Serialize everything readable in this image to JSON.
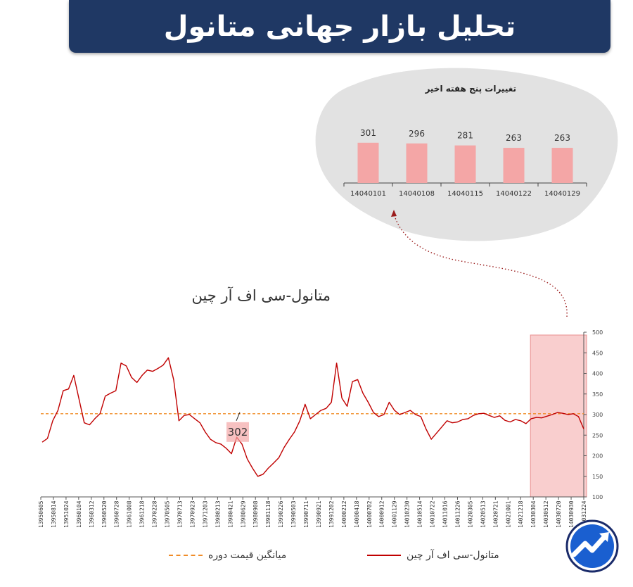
{
  "header": {
    "title": "تحلیل بازار جهانی متانول"
  },
  "inset": {
    "title": "تغییرات پنج هفته اخیر",
    "bar_color": "#f4a6a6"
  },
  "main": {
    "title": "متانول-سی اف آر  چین",
    "callout_value": "302",
    "highlight_color": "#f4a6a6",
    "line_color": "#c00000",
    "avg_color": "#f08c28"
  },
  "legend": {
    "series_label": "متانول-سی اف آر  چین",
    "avg_label": "میانگین قیمت دوره"
  },
  "chart_data": [
    {
      "type": "bar",
      "title": "تغییرات پنج هفته اخیر",
      "categories": [
        "14040101",
        "14040108",
        "14040115",
        "14040122",
        "14040129"
      ],
      "values": [
        301,
        296,
        281,
        263,
        263
      ],
      "value_labels": [
        "301",
        "296",
        "281",
        "263",
        "263"
      ]
    },
    {
      "type": "line",
      "title": "متانول-سی اف آر  چین",
      "ylim": [
        100,
        500
      ],
      "yticks": [
        100,
        150,
        200,
        250,
        300,
        350,
        400,
        450,
        500
      ],
      "ytick_labels": [
        "100",
        "150",
        "200",
        "250",
        "300",
        "350",
        "400",
        "450",
        "500"
      ],
      "xtick_labels": [
        "13950605",
        "13950814",
        "13951024",
        "13960104",
        "13960312",
        "13960520",
        "13960728",
        "13961008",
        "13961218",
        "13970228",
        "13970505",
        "13970713",
        "13970923",
        "13971203",
        "13980213",
        "13980421",
        "13980629",
        "13980908",
        "13981118",
        "13990226",
        "13990503",
        "13990711",
        "13990921",
        "13991202",
        "14000212",
        "14000418",
        "14000702",
        "14000912",
        "14001129",
        "14010230",
        "14010514",
        "14010722",
        "14011016",
        "14011226",
        "14020305",
        "14020513",
        "14020721",
        "14021001",
        "14021218",
        "14030304",
        "14030512",
        "14030720",
        "14030930",
        "14031224"
      ],
      "series": [
        {
          "name": "متانول-سی اف آر  چین",
          "values": [
            233,
            242,
            285,
            310,
            358,
            362,
            395,
            338,
            280,
            275,
            290,
            302,
            345,
            352,
            358,
            425,
            418,
            390,
            378,
            395,
            408,
            405,
            412,
            420,
            438,
            385,
            285,
            298,
            300,
            290,
            280,
            258,
            240,
            232,
            228,
            218,
            205,
            245,
            228,
            192,
            170,
            150,
            155,
            170,
            182,
            195,
            220,
            240,
            258,
            285,
            325,
            290,
            300,
            310,
            315,
            330,
            425,
            340,
            320,
            380,
            385,
            352,
            330,
            305,
            295,
            300,
            330,
            310,
            300,
            305,
            310,
            300,
            295,
            265,
            240,
            255,
            270,
            285,
            280,
            282,
            288,
            290,
            298,
            302,
            303,
            298,
            293,
            297,
            286,
            282,
            288,
            285,
            278,
            290,
            293,
            292,
            296,
            300,
            305,
            303,
            300,
            302,
            295,
            265
          ]
        },
        {
          "name": "میانگین قیمت دوره",
          "values": [
            302
          ]
        }
      ],
      "highlight": {
        "from_tick": "14030304",
        "to_tick": "14031224"
      },
      "annotation": {
        "label": "302",
        "value": 302
      }
    }
  ]
}
